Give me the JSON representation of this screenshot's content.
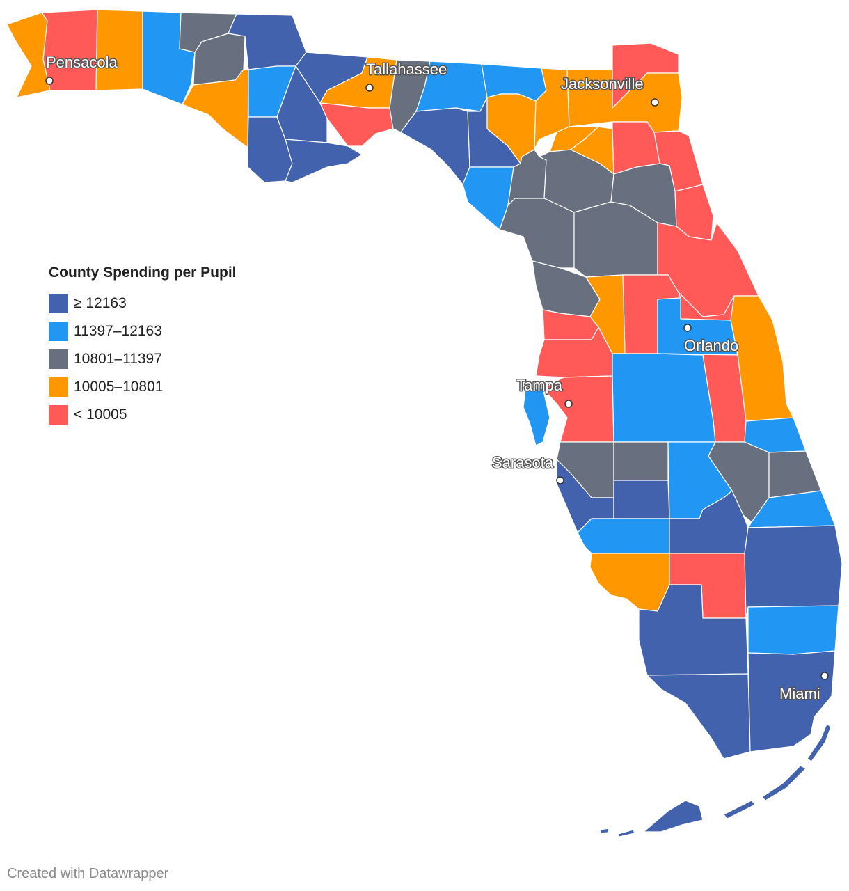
{
  "legend": {
    "title": "County Spending per Pupil",
    "items": [
      {
        "label": "≥ 12163",
        "color": "#4262ad"
      },
      {
        "label": "11397–12163",
        "color": "#2196f3"
      },
      {
        "label": "10801–11397",
        "color": "#68707f"
      },
      {
        "label": "10005–10801",
        "color": "#ff9800"
      },
      {
        "label": "< 10005",
        "color": "#ff5a57"
      }
    ]
  },
  "cities": {
    "pensacola": "Pensacola",
    "tallahassee": "Tallahassee",
    "jacksonville": "Jacksonville",
    "orlando": "Orlando",
    "tampa": "Tampa",
    "sarasota": "Sarasota",
    "miami": "Miami"
  },
  "colors": {
    "dark_blue": "#4262ad",
    "blue": "#2196f3",
    "gray": "#68707f",
    "orange": "#ff9800",
    "red": "#ff5a57"
  },
  "credit": "Created with Datawrapper"
}
